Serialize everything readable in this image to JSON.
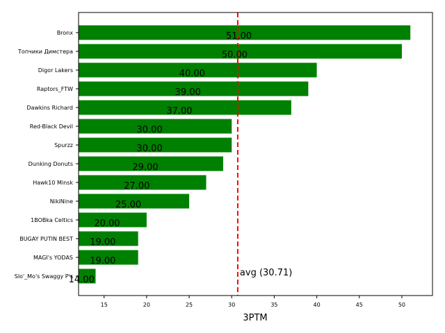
{
  "chart_data": {
    "type": "bar",
    "orientation": "horizontal",
    "title": "",
    "xlabel": "3PTM",
    "ylabel": "",
    "xlim": [
      12,
      53.6
    ],
    "xticks": [
      15,
      20,
      25,
      30,
      35,
      40,
      45,
      50
    ],
    "grid": false,
    "bar_color": "#008000",
    "categories": [
      "Bronx",
      "Топчики Димстера",
      "Digor Lakers",
      "Raptors_FTW",
      "Dawkins Richard",
      "Red-Black Devil",
      "Spurzz",
      "Dunking Donuts",
      "Hawk10 Minsk",
      "NikiNine",
      "1BOBka Celtics",
      "BUGAY PUTIN BEST",
      "MAGI's YODAS",
      "Slo'_Mo's Swaggy P's"
    ],
    "values": [
      51,
      50,
      40,
      39,
      37,
      30,
      30,
      29,
      27,
      25,
      20,
      19,
      19,
      14
    ],
    "value_labels": [
      "51.00",
      "50.00",
      "40.00",
      "39.00",
      "37.00",
      "30.00",
      "30.00",
      "29.00",
      "27.00",
      "25.00",
      "20.00",
      "19.00",
      "19.00",
      "14.00"
    ],
    "reference_line": {
      "value": 30.71,
      "label": "avg (30.71)",
      "color": "#ff0000",
      "style": "dashed"
    }
  }
}
